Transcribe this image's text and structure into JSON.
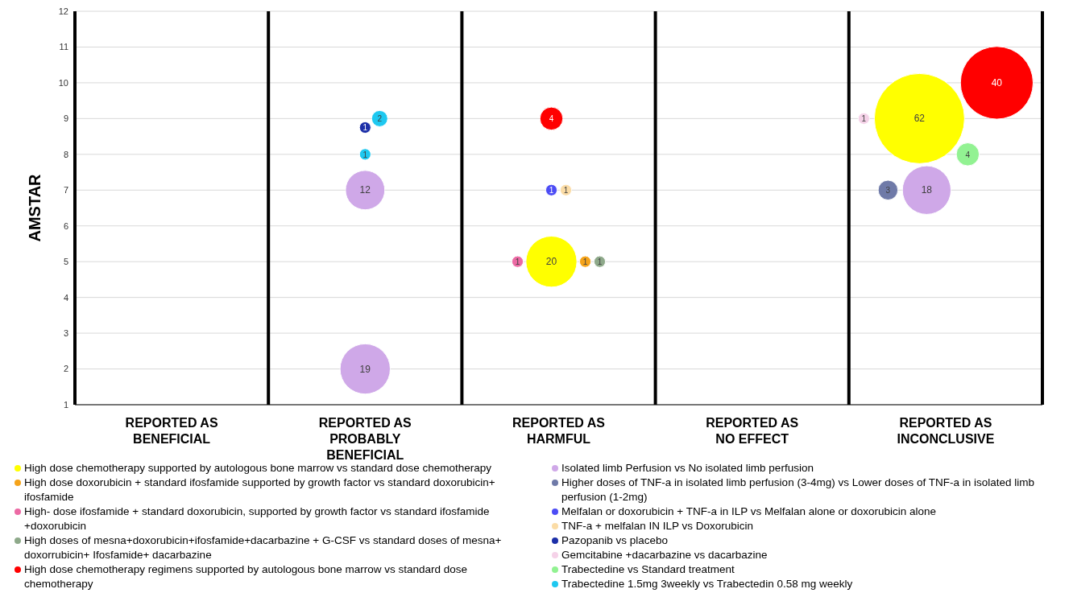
{
  "chart_data": {
    "type": "bubble",
    "ylabel": "AMSTAR",
    "categories": [
      "REPORTED AS BENEFICIAL",
      "REPORTED AS PROBABLY BENEFICIAL",
      "REPORTED AS HARMFUL",
      "REPORTED AS NO EFFECT",
      "REPORTED AS INCONCLUSIVE"
    ],
    "ylim": [
      1,
      12
    ],
    "yticks": [
      1,
      2,
      3,
      4,
      5,
      6,
      7,
      8,
      9,
      10,
      11,
      12
    ],
    "grid": true,
    "legend": "bottom",
    "annotations": [
      "20",
      "62",
      "1",
      "1",
      "1",
      "4",
      "40",
      "12",
      "18",
      "19",
      "3",
      "1",
      "1",
      "1",
      "1",
      "4",
      "1",
      "2"
    ],
    "series": [
      {
        "name": "High dose chemotherapy supported by autologous bone marrow vs standard dose chemotherapy",
        "color": "#ffff00",
        "values": [
          null,
          null,
          5,
          null,
          9
        ],
        "sizes": [
          null,
          null,
          0.32,
          null,
          1
        ]
      },
      {
        "name": "High dose doxorubicin + standard ifosfamide supported by growth factor vs standard doxorubicin+ ifosfamide",
        "color": "#f5a31a",
        "values": [
          null,
          null,
          5,
          null,
          null
        ],
        "sizes": [
          null,
          null,
          0.016,
          null,
          null
        ]
      },
      {
        "name": "High- dose ifosfamide + standard doxorubicin, supported by growth factor vs standard ifosfamide +doxorubicin",
        "color": "#ec6aa4",
        "values": [
          null,
          null,
          5,
          null,
          null
        ],
        "sizes": [
          null,
          null,
          0.016,
          null,
          null
        ]
      },
      {
        "name": "High doses of mesna+doxorubicin+ifosfamide+dacarbazine + G-CSF vs standard  doses of mesna+ doxorrubicin+ Ifosfamide+ dacarbazine",
        "color": "#8ea98a",
        "values": [
          null,
          null,
          5,
          null,
          null
        ],
        "sizes": [
          null,
          null,
          0.016,
          null,
          null
        ]
      },
      {
        "name": "High dose chemotherapy regimens supported by autologous bone marrow vs standard dose chemotherapy",
        "color": "#ff0000",
        "values": [
          null,
          null,
          9,
          null,
          10
        ],
        "sizes": [
          null,
          null,
          0.065,
          null,
          0.65
        ]
      },
      {
        "name": "Isolated limb Perfusion vs No isolated limb perfusion",
        "color": "#cfa8e8",
        "values": [
          null,
          7,
          null,
          null,
          7
        ],
        "sizes": [
          null,
          0.19,
          null,
          null,
          0.29
        ]
      },
      {
        "color": "#cfa8e8",
        "values": [
          null,
          2,
          null,
          null,
          null
        ],
        "sizes": [
          null,
          0.31,
          null,
          null,
          null
        ]
      },
      {
        "name": "Higher doses of TNF-a in isolated limb perfusion (3-4mg) vs Lower doses of TNF-a in isolated limb perfusion (1-2mg)",
        "color": "#6f7aa8",
        "values": [
          null,
          null,
          null,
          null,
          7
        ],
        "sizes": [
          null,
          null,
          null,
          null,
          0.048
        ]
      },
      {
        "name": "Melfalan or doxorubicin + TNF-a in ILP vs Melfalan alone or doxorubicin alone",
        "color": "#4c4cf5",
        "values": [
          null,
          null,
          7,
          null,
          null
        ],
        "sizes": [
          null,
          null,
          0.016,
          null,
          null
        ]
      },
      {
        "name": "TNF-a + melfalan IN ILP vs Doxorubicin",
        "color": "#fbdca6",
        "values": [
          null,
          null,
          7,
          null,
          null
        ],
        "sizes": [
          null,
          null,
          0.016,
          null,
          null
        ]
      },
      {
        "name": "Pazopanib vs placebo",
        "color": "#1c2fa8",
        "values": [
          null,
          8.75,
          null,
          null,
          null
        ],
        "sizes": [
          null,
          0.016,
          null,
          null,
          null
        ]
      },
      {
        "name": "Gemcitabine +dacarbazine vs dacarbazine",
        "color": "#f5d2e8",
        "values": [
          null,
          null,
          null,
          null,
          9
        ],
        "sizes": [
          null,
          null,
          null,
          null,
          0.016
        ]
      },
      {
        "name": "Trabectedine vs Standard treatment",
        "color": "#92f292",
        "values": [
          null,
          null,
          null,
          null,
          8
        ],
        "sizes": [
          null,
          null,
          null,
          null,
          0.065
        ]
      },
      {
        "name": "Trabectedine 1.5mg 3weekly vs Trabectedin 0.58 mg weekly",
        "color": "#1ec8f0",
        "values": [
          null,
          8,
          null,
          null,
          null
        ],
        "sizes": [
          null,
          0.016,
          null,
          null,
          null
        ]
      },
      {
        "color": "#1ec8f0",
        "values": [
          null,
          9,
          null,
          null,
          null
        ],
        "sizes": [
          null,
          0.032,
          null,
          null,
          null
        ]
      }
    ]
  }
}
